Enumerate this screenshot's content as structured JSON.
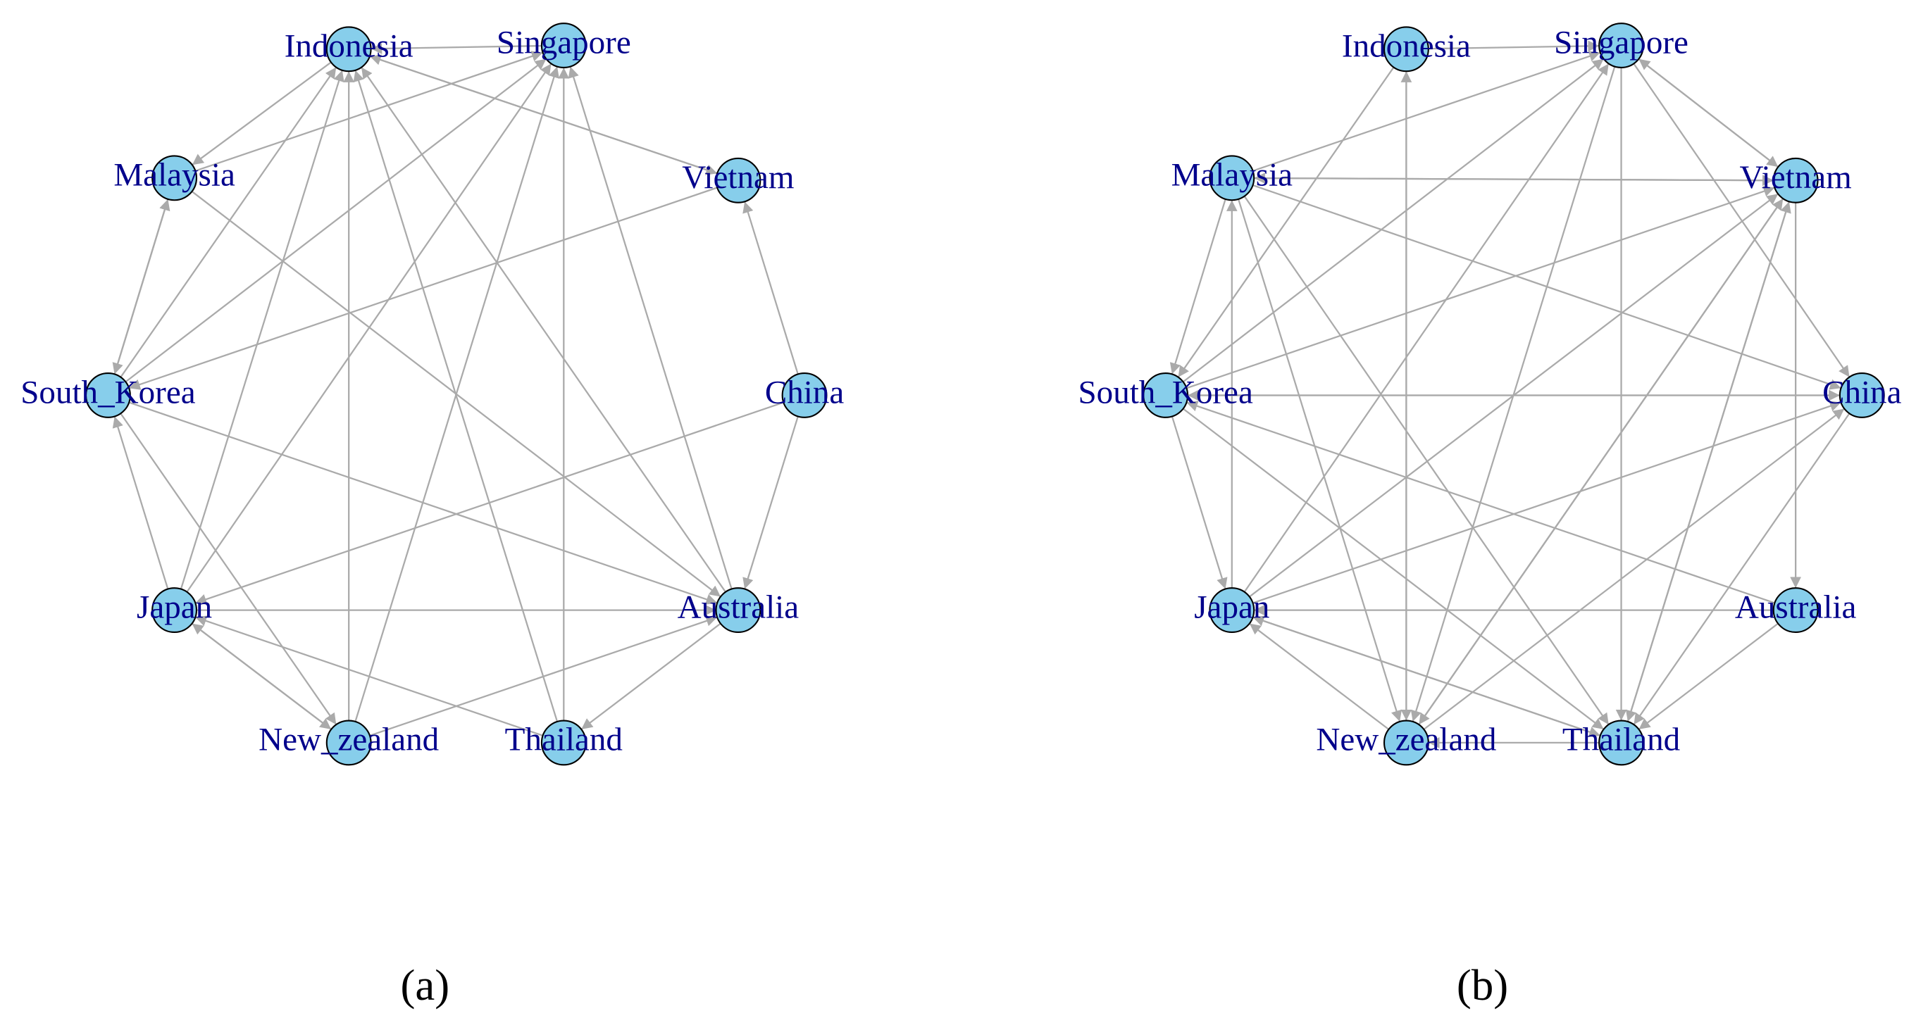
{
  "panels": [
    {
      "nodes": [
        {
          "label": "Indonesia"
        },
        {
          "label": "Singapore"
        },
        {
          "label": "Malaysia"
        },
        {
          "label": "Vietnam"
        },
        {
          "label": "South_Korea"
        },
        {
          "label": "China"
        },
        {
          "label": "Japan"
        },
        {
          "label": "Australia"
        },
        {
          "label": "New_zealand"
        },
        {
          "label": "Thailand"
        }
      ],
      "caption": "(a)"
    },
    {
      "nodes": [
        {
          "label": "Indonesia"
        },
        {
          "label": "Singapore"
        },
        {
          "label": "Malaysia"
        },
        {
          "label": "Vietnam"
        },
        {
          "label": "South_Korea"
        },
        {
          "label": "China"
        },
        {
          "label": "Japan"
        },
        {
          "label": "Australia"
        },
        {
          "label": "New_zealand"
        },
        {
          "label": "Thailand"
        }
      ],
      "caption": "(b)"
    }
  ]
}
